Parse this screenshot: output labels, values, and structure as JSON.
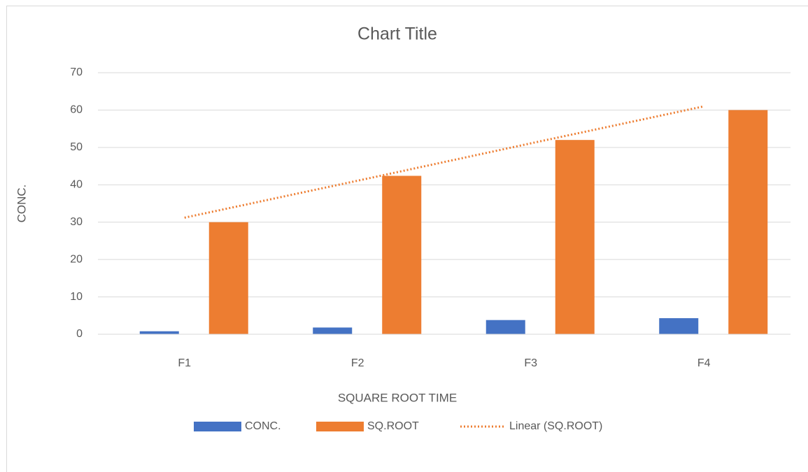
{
  "chart_data": {
    "type": "bar",
    "title": "Chart Title",
    "x_label": "SQUARE ROOT TIME",
    "y_label": "CONC.",
    "categories": [
      "F1",
      "F2",
      "F3",
      "F4"
    ],
    "series": [
      {
        "name": "CONC.",
        "color": "#4472c4",
        "values": [
          0.8,
          1.8,
          3.8,
          4.3
        ]
      },
      {
        "name": "SQ.ROOT",
        "color": "#ed7d31",
        "values": [
          30,
          42.4,
          52,
          60
        ]
      },
      {
        "name": "Linear (SQ.ROOT)",
        "color": "#ed7d31",
        "type": "line",
        "dotted": true,
        "values": [
          31.2,
          41.1,
          51.1,
          61
        ]
      }
    ],
    "ylim": [
      0,
      70
    ],
    "yticks": [
      0,
      10,
      20,
      30,
      40,
      50,
      60,
      70
    ],
    "grid": true,
    "legend": "bottom"
  }
}
